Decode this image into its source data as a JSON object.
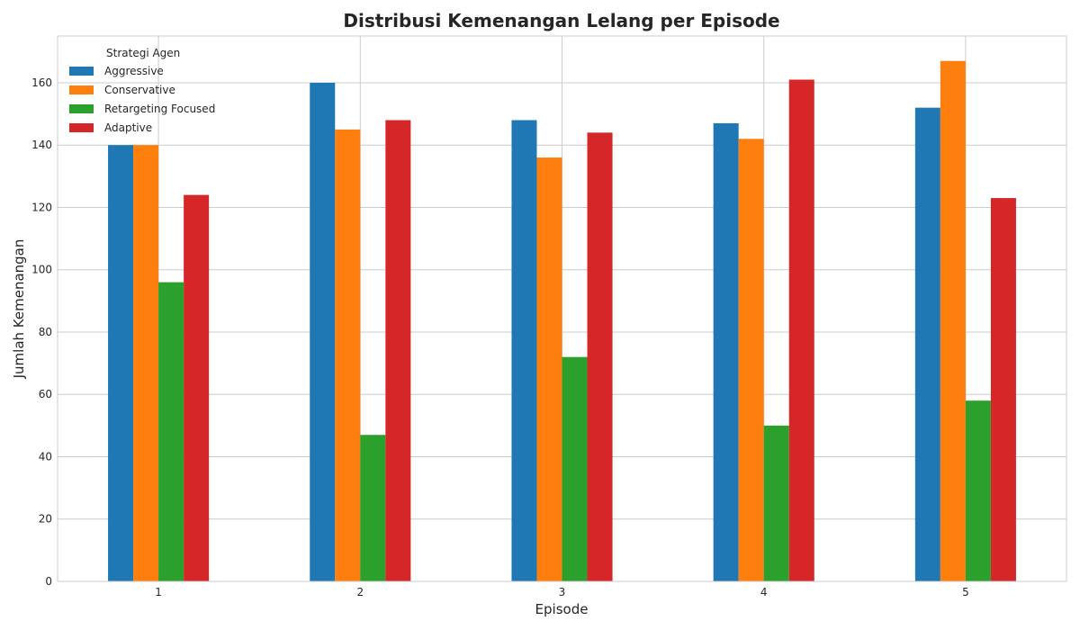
{
  "chart_data": {
    "type": "bar",
    "title": "Distribusi Kemenangan Lelang per Episode",
    "xlabel": "Episode",
    "ylabel": "Jumlah Kemenangan",
    "categories": [
      "1",
      "2",
      "3",
      "4",
      "5"
    ],
    "ylim": [
      0,
      175
    ],
    "yticks": [
      0,
      20,
      40,
      60,
      80,
      100,
      120,
      140,
      160
    ],
    "grid": true,
    "legend": {
      "title": "Strategi Agen",
      "placement": "top-left"
    },
    "series": [
      {
        "name": "Aggressive",
        "color": "#1f77b4",
        "values": [
          140,
          160,
          148,
          147,
          152
        ]
      },
      {
        "name": "Conservative",
        "color": "#ff7f0e",
        "values": [
          140,
          145,
          136,
          142,
          167
        ]
      },
      {
        "name": "Retargeting Focused",
        "color": "#2ca02c",
        "values": [
          96,
          47,
          72,
          50,
          58
        ]
      },
      {
        "name": "Adaptive",
        "color": "#d62728",
        "values": [
          124,
          148,
          144,
          161,
          123
        ]
      }
    ]
  }
}
